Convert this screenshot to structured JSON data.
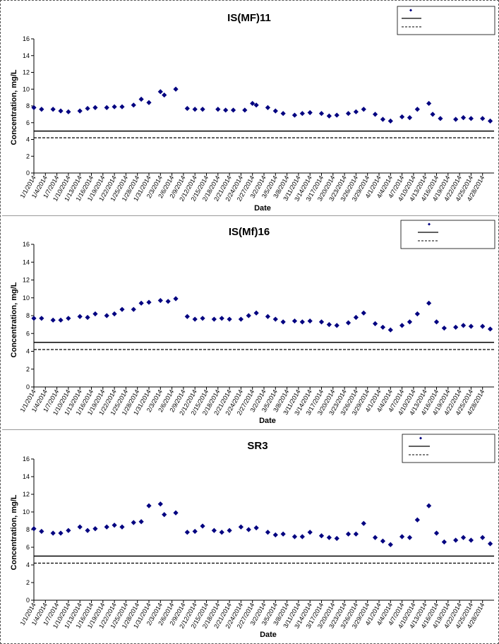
{
  "chart_data": [
    {
      "type": "scatter",
      "title": "IS(MF)11",
      "xlabel": "Date",
      "ylabel": "Concentration, mg/L",
      "ylim": [
        0,
        16
      ],
      "yticks": [
        0,
        2,
        4,
        6,
        8,
        10,
        12,
        14,
        16
      ],
      "x_tick_labels": [
        "1/1/2014",
        "1/4/2014",
        "1/7/2014",
        "1/10/2014",
        "1/13/2014",
        "1/16/2014",
        "1/19/2014",
        "1/22/2014",
        "1/25/2014",
        "1/28/2014",
        "1/31/2014",
        "2/3/2014",
        "2/6/2014",
        "2/9/2014",
        "2/12/2014",
        "2/15/2014",
        "2/18/2014",
        "2/21/2014",
        "2/24/2014",
        "2/27/2014",
        "3/2/2014",
        "3/5/2014",
        "3/8/2014",
        "3/11/2014",
        "3/14/2014",
        "3/17/2014",
        "3/20/2014",
        "3/23/2014",
        "3/26/2014",
        "3/29/2014",
        "4/1/2014",
        "4/4/2014",
        "4/7/2014",
        "4/10/2014",
        "4/13/2014",
        "4/16/2014",
        "4/19/2014",
        "4/22/2014",
        "4/25/2014",
        "4/28/2014"
      ],
      "legend_position": "top-right",
      "legend_entries": [
        "",
        "",
        ""
      ],
      "series": [
        {
          "marker": "diamond",
          "color": "#000080",
          "x": [
            "1/1/2014",
            "1/3/2014",
            "1/6/2014",
            "1/8/2014",
            "1/10/2014",
            "1/13/2014",
            "1/15/2014",
            "1/17/2014",
            "1/20/2014",
            "1/22/2014",
            "1/24/2014",
            "1/27/2014",
            "1/29/2014",
            "1/31/2014",
            "2/3/2014",
            "2/4/2014",
            "2/7/2014",
            "2/10/2014",
            "2/12/2014",
            "2/14/2014",
            "2/18/2014",
            "2/20/2014",
            "2/22/2014",
            "2/25/2014",
            "2/27/2014",
            "2/28/2014",
            "3/3/2014",
            "3/5/2014",
            "3/7/2014",
            "3/10/2014",
            "3/12/2014",
            "3/14/2014",
            "3/17/2014",
            "3/19/2014",
            "3/21/2014",
            "3/24/2014",
            "3/26/2014",
            "3/28/2014",
            "3/31/2014",
            "4/2/2014",
            "4/4/2014",
            "4/7/2014",
            "4/9/2014",
            "4/11/2014",
            "4/14/2014",
            "4/15/2014",
            "4/17/2014",
            "4/21/2014",
            "4/23/2014",
            "4/25/2014",
            "4/28/2014",
            "4/30/2014"
          ],
          "y": [
            7.8,
            7.6,
            7.6,
            7.4,
            7.3,
            7.4,
            7.7,
            7.8,
            7.8,
            7.9,
            7.9,
            8.1,
            8.8,
            8.4,
            9.7,
            9.3,
            10.0,
            7.7,
            7.6,
            7.6,
            7.6,
            7.5,
            7.5,
            7.5,
            8.3,
            8.1,
            7.8,
            7.4,
            7.1,
            6.9,
            7.1,
            7.2,
            7.1,
            6.8,
            6.9,
            7.1,
            7.3,
            7.6,
            7.0,
            6.4,
            6.2,
            6.7,
            6.6,
            7.6,
            8.3,
            7.0,
            6.5,
            6.4,
            6.6,
            6.5,
            6.5,
            6.2
          ]
        },
        {
          "style": "solid",
          "color": "#000000",
          "y": 5.0
        },
        {
          "style": "dashed",
          "color": "#000000",
          "y": 4.2
        }
      ]
    },
    {
      "type": "scatter",
      "title": "IS(Mf)16",
      "xlabel": "Date",
      "ylabel": "Concentration, mg/L",
      "ylim": [
        0,
        16
      ],
      "yticks": [
        0,
        2,
        4,
        6,
        8,
        10,
        12,
        14,
        16
      ],
      "x_tick_labels": [
        "1/1/2014",
        "1/4/2014",
        "1/7/2014",
        "1/10/2014",
        "1/13/2014",
        "1/16/2014",
        "1/19/2014",
        "1/22/2014",
        "1/25/2014",
        "1/28/2014",
        "1/31/2014",
        "2/3/2014",
        "2/6/2014",
        "2/9/2014",
        "2/12/2014",
        "2/15/2014",
        "2/18/2014",
        "2/21/2014",
        "2/24/2014",
        "2/27/2014",
        "3/2/2014",
        "3/5/2014",
        "3/8/2014",
        "3/11/2014",
        "3/14/2014",
        "3/17/2014",
        "3/20/2014",
        "3/23/2014",
        "3/26/2014",
        "3/29/2014",
        "4/1/2014",
        "4/4/2014",
        "4/7/2014",
        "4/10/2014",
        "4/13/2014",
        "4/16/2014",
        "4/19/2014",
        "4/22/2014",
        "4/25/2014",
        "4/28/2014"
      ],
      "legend_position": "top-right",
      "legend_entries": [
        "",
        "",
        ""
      ],
      "series": [
        {
          "marker": "diamond",
          "color": "#000080",
          "x": [
            "1/1/2014",
            "1/3/2014",
            "1/6/2014",
            "1/8/2014",
            "1/10/2014",
            "1/13/2014",
            "1/15/2014",
            "1/17/2014",
            "1/20/2014",
            "1/22/2014",
            "1/24/2014",
            "1/27/2014",
            "1/29/2014",
            "1/31/2014",
            "2/3/2014",
            "2/5/2014",
            "2/7/2014",
            "2/10/2014",
            "2/12/2014",
            "2/14/2014",
            "2/17/2014",
            "2/19/2014",
            "2/21/2014",
            "2/24/2014",
            "2/26/2014",
            "2/28/2014",
            "3/3/2014",
            "3/5/2014",
            "3/7/2014",
            "3/10/2014",
            "3/12/2014",
            "3/14/2014",
            "3/17/2014",
            "3/19/2014",
            "3/21/2014",
            "3/24/2014",
            "3/26/2014",
            "3/28/2014",
            "3/31/2014",
            "4/2/2014",
            "4/4/2014",
            "4/7/2014",
            "4/9/2014",
            "4/11/2014",
            "4/14/2014",
            "4/16/2014",
            "4/18/2014",
            "4/21/2014",
            "4/23/2014",
            "4/25/2014",
            "4/28/2014",
            "4/30/2014"
          ],
          "y": [
            7.7,
            7.7,
            7.5,
            7.5,
            7.7,
            7.9,
            7.8,
            8.2,
            8.0,
            8.2,
            8.7,
            8.7,
            9.4,
            9.5,
            9.7,
            9.6,
            9.9,
            7.9,
            7.6,
            7.7,
            7.6,
            7.7,
            7.6,
            7.6,
            8.0,
            8.3,
            7.9,
            7.6,
            7.3,
            7.4,
            7.3,
            7.4,
            7.3,
            7.0,
            6.9,
            7.2,
            7.8,
            8.3,
            7.1,
            6.7,
            6.4,
            6.9,
            7.3,
            8.2,
            9.4,
            7.3,
            6.6,
            6.7,
            6.9,
            6.8,
            6.8,
            6.5
          ]
        },
        {
          "style": "solid",
          "color": "#000000",
          "y": 5.0
        },
        {
          "style": "dashed",
          "color": "#000000",
          "y": 4.2
        }
      ]
    },
    {
      "type": "scatter",
      "title": "SR3",
      "xlabel": "Date",
      "ylabel": "Concentration, mg/L",
      "ylim": [
        0,
        16
      ],
      "yticks": [
        0,
        2,
        4,
        6,
        8,
        10,
        12,
        14,
        16
      ],
      "x_tick_labels": [
        "1/1/2014",
        "1/4/2014",
        "1/7/2014",
        "1/10/2014",
        "1/13/2014",
        "1/16/2014",
        "1/19/2014",
        "1/22/2014",
        "1/25/2014",
        "1/28/2014",
        "1/31/2014",
        "2/3/2014",
        "2/6/2014",
        "2/9/2014",
        "2/12/2014",
        "2/15/2014",
        "2/18/2014",
        "2/21/2014",
        "2/24/2014",
        "2/27/2014",
        "3/2/2014",
        "3/5/2014",
        "3/8/2014",
        "3/11/2014",
        "3/14/2014",
        "3/17/2014",
        "3/20/2014",
        "3/23/2014",
        "3/26/2014",
        "3/29/2014",
        "4/1/2014",
        "4/4/2014",
        "4/7/2014",
        "4/10/2014",
        "4/13/2014",
        "4/16/2014",
        "4/19/2014",
        "4/22/2014",
        "4/25/2014",
        "4/28/2014"
      ],
      "legend_position": "top-right",
      "legend_entries": [
        "",
        "",
        ""
      ],
      "series": [
        {
          "marker": "diamond",
          "color": "#000080",
          "x": [
            "1/1/2014",
            "1/3/2014",
            "1/6/2014",
            "1/8/2014",
            "1/10/2014",
            "1/13/2014",
            "1/15/2014",
            "1/17/2014",
            "1/20/2014",
            "1/22/2014",
            "1/24/2014",
            "1/27/2014",
            "1/29/2014",
            "1/31/2014",
            "2/3/2014",
            "2/4/2014",
            "2/7/2014",
            "2/10/2014",
            "2/12/2014",
            "2/14/2014",
            "2/17/2014",
            "2/19/2014",
            "2/21/2014",
            "2/24/2014",
            "2/26/2014",
            "2/28/2014",
            "3/3/2014",
            "3/5/2014",
            "3/7/2014",
            "3/10/2014",
            "3/12/2014",
            "3/14/2014",
            "3/17/2014",
            "3/19/2014",
            "3/21/2014",
            "3/24/2014",
            "3/26/2014",
            "3/28/2014",
            "3/31/2014",
            "4/2/2014",
            "4/4/2014",
            "4/7/2014",
            "4/9/2014",
            "4/11/2014",
            "4/14/2014",
            "4/16/2014",
            "4/18/2014",
            "4/21/2014",
            "4/23/2014",
            "4/25/2014",
            "4/28/2014",
            "4/30/2014"
          ],
          "y": [
            8.1,
            7.8,
            7.6,
            7.6,
            7.9,
            8.3,
            7.9,
            8.1,
            8.3,
            8.5,
            8.3,
            8.8,
            8.9,
            10.7,
            10.9,
            9.7,
            9.9,
            7.7,
            7.8,
            8.4,
            7.9,
            7.7,
            7.9,
            8.3,
            8.0,
            8.2,
            7.7,
            7.4,
            7.5,
            7.2,
            7.2,
            7.7,
            7.3,
            7.1,
            7.0,
            7.5,
            7.5,
            8.7,
            7.1,
            6.7,
            6.3,
            7.2,
            7.1,
            9.1,
            10.7,
            7.6,
            6.6,
            6.8,
            7.1,
            6.8,
            7.1,
            6.4
          ]
        },
        {
          "style": "solid",
          "color": "#000000",
          "y": 5.0
        },
        {
          "style": "dashed",
          "color": "#000000",
          "y": 4.2
        }
      ]
    }
  ]
}
